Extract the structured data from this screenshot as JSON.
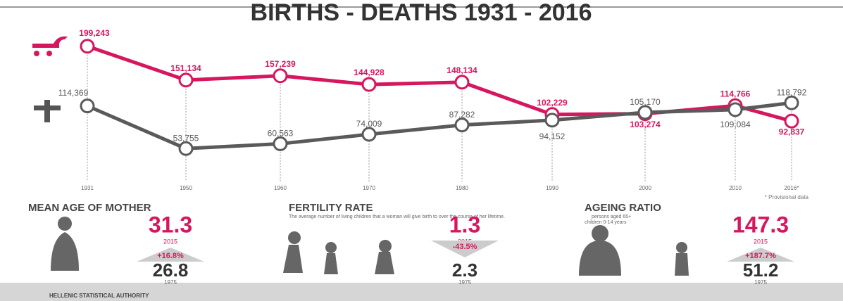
{
  "chart_data": {
    "type": "line",
    "title": "BIRTHS - DEATHS 1931 - 2016",
    "categories": [
      "1931",
      "1950",
      "1960",
      "1970",
      "1980",
      "1990",
      "2000",
      "2010",
      "2016*"
    ],
    "series": [
      {
        "name": "Births",
        "color": "#d6175f",
        "values": [
          199243,
          151134,
          157239,
          144928,
          148134,
          102229,
          103274,
          114766,
          92837
        ],
        "value_labels": [
          "199,243",
          "151,134",
          "157,239",
          "144,928",
          "148,134",
          "102,229",
          "103,274",
          "114,766",
          "92,837"
        ]
      },
      {
        "name": "Deaths",
        "color": "#5a5a5a",
        "values": [
          114369,
          53755,
          60563,
          74009,
          87282,
          94152,
          105170,
          109084,
          118792
        ],
        "value_labels": [
          "114,369",
          "53,755",
          "60,563",
          "74,009",
          "87,282",
          "94,152",
          "105,170",
          "109,084",
          "118,792"
        ]
      }
    ],
    "ylim": [
      0,
      230000
    ],
    "note": "* Provisional data"
  },
  "stats": [
    {
      "title": "MEAN AGE OF MOTHER",
      "now": "31.3",
      "now_year": "2015",
      "change": "+16.8%",
      "then": "26.8",
      "then_year": "1975"
    },
    {
      "title": "FERTILITY RATE",
      "subtitle": "The average number of living children that a woman will give birth to over the course of her lifetime.",
      "now": "1.3",
      "now_year": "2015",
      "change": "-43.5%",
      "then": "2.3",
      "then_year": "1975"
    },
    {
      "title": "AGEING RATIO",
      "subtitle": "persons aged 65+",
      "subtitle2": "children 0-14 years",
      "now": "147.3",
      "now_year": "2015",
      "change": "+187.7%",
      "then": "51.2",
      "then_year": "1975"
    }
  ],
  "footer": "HELLENIC STATISTICAL AUTHORITY"
}
